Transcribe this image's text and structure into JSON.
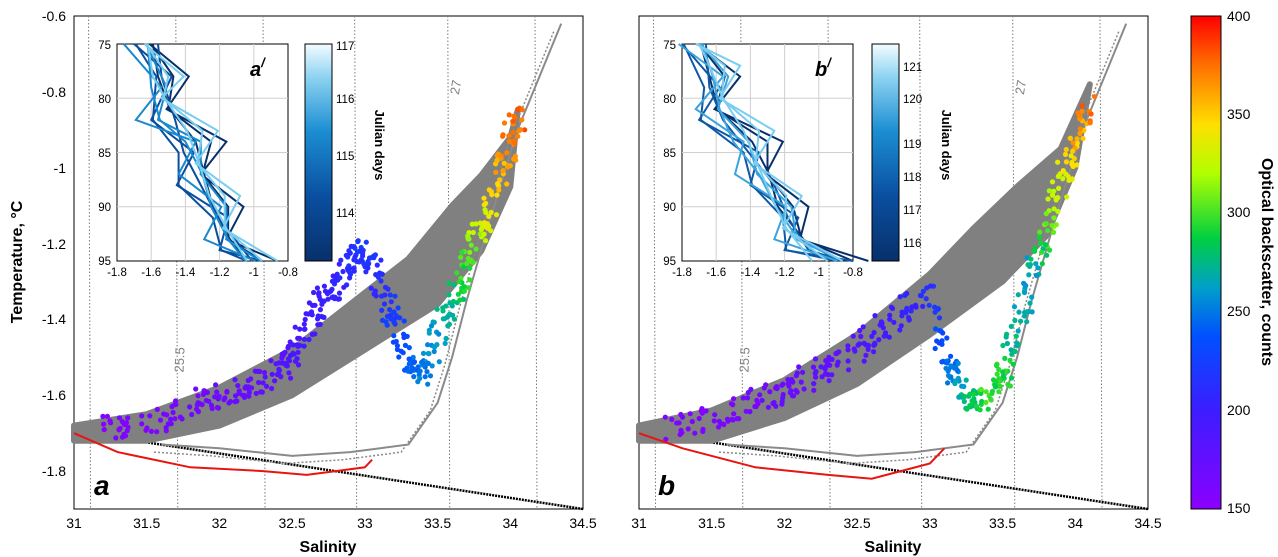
{
  "colors": {
    "gray_points": "#808080",
    "freezing_line": "#000000",
    "red_profile": "#e8140f",
    "isopycnal": "#7a7a7a",
    "grid": "#cfcfcf"
  },
  "chart_data": [
    {
      "id": "a",
      "type": "scatter",
      "panel_letter": "a",
      "xlabel": "Salinity",
      "ylabel": "Temperature, °C",
      "xlim": [
        31,
        34.5
      ],
      "ylim": [
        -1.9,
        -0.6
      ],
      "xticks": [
        "31",
        "31.5",
        "32",
        "32.5",
        "33",
        "33.5",
        "34",
        "34.5"
      ],
      "yticks": [
        "-0.6",
        "-0.8",
        "-1",
        "-1.2",
        "-1.4",
        "-1.6",
        "-1.8"
      ],
      "isopycnal_labels": [
        "25.5",
        "27"
      ],
      "series": [
        {
          "kind": "background",
          "color": "#808080",
          "upper_edge": [
            [
              31.0,
              -1.68
            ],
            [
              31.5,
              -1.65
            ],
            [
              32.0,
              -1.58
            ],
            [
              32.5,
              -1.48
            ],
            [
              33.0,
              -1.33
            ],
            [
              33.3,
              -1.24
            ],
            [
              33.6,
              -1.1
            ],
            [
              33.8,
              -1.02
            ],
            [
              34.0,
              -0.92
            ],
            [
              34.05,
              -0.85
            ]
          ],
          "lower_edge": [
            [
              31.0,
              -1.72
            ],
            [
              31.5,
              -1.72
            ],
            [
              32.0,
              -1.68
            ],
            [
              32.5,
              -1.6
            ],
            [
              33.0,
              -1.48
            ],
            [
              33.5,
              -1.36
            ],
            [
              33.8,
              -1.22
            ],
            [
              34.0,
              -1.05
            ],
            [
              34.05,
              -0.85
            ]
          ]
        },
        {
          "kind": "colored",
          "values": [
            [
              31.2,
              -1.69,
              155
            ],
            [
              31.5,
              -1.67,
              160
            ],
            [
              31.8,
              -1.63,
              165
            ],
            [
              32.0,
              -1.6,
              170
            ],
            [
              32.2,
              -1.58,
              175
            ],
            [
              32.4,
              -1.53,
              180
            ],
            [
              32.5,
              -1.5,
              190
            ],
            [
              32.6,
              -1.42,
              195
            ],
            [
              32.7,
              -1.35,
              200
            ],
            [
              32.8,
              -1.3,
              205
            ],
            [
              32.9,
              -1.25,
              210
            ],
            [
              33.0,
              -1.22,
              220
            ],
            [
              33.1,
              -1.3,
              210
            ],
            [
              33.2,
              -1.4,
              225
            ],
            [
              33.3,
              -1.5,
              240
            ],
            [
              33.4,
              -1.55,
              250
            ],
            [
              33.5,
              -1.45,
              260
            ],
            [
              33.6,
              -1.35,
              280
            ],
            [
              33.7,
              -1.25,
              300
            ],
            [
              33.8,
              -1.15,
              330
            ],
            [
              33.9,
              -1.05,
              350
            ],
            [
              34.0,
              -0.95,
              370
            ],
            [
              34.05,
              -0.85,
              380
            ]
          ]
        },
        {
          "kind": "profile",
          "color": "#e8140f",
          "points": [
            [
              31.0,
              -1.7
            ],
            [
              31.3,
              -1.75
            ],
            [
              31.8,
              -1.79
            ],
            [
              32.3,
              -1.8
            ],
            [
              32.6,
              -1.81
            ],
            [
              32.8,
              -1.8
            ],
            [
              33.0,
              -1.79
            ],
            [
              33.05,
              -1.77
            ]
          ]
        }
      ],
      "colorbar": {
        "title": "Optical backscatter, counts",
        "ticks": [
          "150",
          "200",
          "250",
          "300",
          "350",
          "400"
        ],
        "range": [
          150,
          400
        ]
      },
      "inset": {
        "label": "a",
        "label_superscript": "/",
        "xticks": [
          "-1.8",
          "-1.6",
          "-1.4",
          "-1.2",
          "-1",
          "-0.8"
        ],
        "yticks": [
          "75",
          "80",
          "85",
          "90",
          "95"
        ],
        "xlim": [
          -1.8,
          -0.8
        ],
        "ylim": [
          75,
          95
        ],
        "colorbar_title": "Julian days",
        "colorbar_ticks": [
          "114",
          "115",
          "116",
          "117"
        ],
        "profiles": [
          {
            "day": 114,
            "points": [
              [
                -1.55,
                75
              ],
              [
                -1.52,
                78
              ],
              [
                -1.45,
                81
              ],
              [
                -1.3,
                84
              ],
              [
                -1.25,
                87
              ],
              [
                -1.2,
                90
              ],
              [
                -1.1,
                93
              ],
              [
                -1.0,
                95
              ]
            ]
          },
          {
            "day": 115,
            "points": [
              [
                -1.6,
                75
              ],
              [
                -1.58,
                78
              ],
              [
                -1.5,
                82
              ],
              [
                -1.45,
                85
              ],
              [
                -1.35,
                88
              ],
              [
                -1.25,
                91
              ],
              [
                -1.1,
                94
              ],
              [
                -1.05,
                95
              ]
            ]
          },
          {
            "day": 116,
            "points": [
              [
                -1.62,
                75
              ],
              [
                -1.6,
                79
              ],
              [
                -1.55,
                82
              ],
              [
                -1.4,
                84
              ],
              [
                -1.3,
                87
              ],
              [
                -1.25,
                90
              ],
              [
                -1.15,
                93
              ],
              [
                -1.05,
                95
              ]
            ]
          },
          {
            "day": 117,
            "points": [
              [
                -1.58,
                75
              ],
              [
                -1.55,
                78
              ],
              [
                -1.48,
                80
              ],
              [
                -1.35,
                83
              ],
              [
                -1.28,
                86
              ],
              [
                -1.22,
                89
              ],
              [
                -1.12,
                92
              ],
              [
                -1.0,
                95
              ]
            ]
          }
        ]
      }
    },
    {
      "id": "b",
      "type": "scatter",
      "panel_letter": "b",
      "xlabel": "Salinity",
      "xlim": [
        31,
        34.5
      ],
      "ylim": [
        -1.9,
        -0.6
      ],
      "xticks": [
        "31",
        "31.5",
        "32",
        "32.5",
        "33",
        "33.5",
        "34",
        "34.5"
      ],
      "isopycnal_labels": [
        "25.5",
        "27"
      ],
      "series": [
        {
          "kind": "background",
          "color": "#808080",
          "upper_edge": [
            [
              31.0,
              -1.68
            ],
            [
              31.5,
              -1.64
            ],
            [
              32.0,
              -1.56
            ],
            [
              32.5,
              -1.44
            ],
            [
              33.0,
              -1.28
            ],
            [
              33.3,
              -1.16
            ],
            [
              33.6,
              -1.05
            ],
            [
              33.9,
              -0.95
            ],
            [
              34.1,
              -0.78
            ]
          ],
          "lower_edge": [
            [
              31.0,
              -1.72
            ],
            [
              31.5,
              -1.72
            ],
            [
              32.0,
              -1.66
            ],
            [
              32.5,
              -1.57
            ],
            [
              33.0,
              -1.44
            ],
            [
              33.5,
              -1.3
            ],
            [
              33.8,
              -1.18
            ],
            [
              34.0,
              -1.0
            ],
            [
              34.1,
              -0.78
            ]
          ]
        },
        {
          "kind": "colored",
          "values": [
            [
              31.2,
              -1.69,
              155
            ],
            [
              31.5,
              -1.66,
              160
            ],
            [
              31.8,
              -1.62,
              165
            ],
            [
              32.0,
              -1.58,
              170
            ],
            [
              32.2,
              -1.55,
              175
            ],
            [
              32.4,
              -1.5,
              180
            ],
            [
              32.6,
              -1.45,
              190
            ],
            [
              32.8,
              -1.38,
              200
            ],
            [
              33.0,
              -1.33,
              215
            ],
            [
              33.1,
              -1.5,
              240
            ],
            [
              33.2,
              -1.58,
              260
            ],
            [
              33.3,
              -1.62,
              280
            ],
            [
              33.4,
              -1.6,
              300
            ],
            [
              33.5,
              -1.55,
              290
            ],
            [
              33.6,
              -1.42,
              270
            ],
            [
              33.7,
              -1.28,
              260
            ],
            [
              33.8,
              -1.18,
              300
            ],
            [
              33.9,
              -1.05,
              330
            ],
            [
              34.0,
              -0.95,
              350
            ],
            [
              34.1,
              -0.82,
              380
            ]
          ]
        },
        {
          "kind": "profile",
          "color": "#e8140f",
          "points": [
            [
              31.0,
              -1.7
            ],
            [
              31.3,
              -1.74
            ],
            [
              31.8,
              -1.79
            ],
            [
              32.3,
              -1.81
            ],
            [
              32.6,
              -1.82
            ],
            [
              32.8,
              -1.8
            ],
            [
              33.0,
              -1.78
            ],
            [
              33.1,
              -1.74
            ]
          ]
        }
      ],
      "inset": {
        "label": "b",
        "label_superscript": "/",
        "xticks": [
          "-1.8",
          "-1.6",
          "-1.4",
          "-1.2",
          "-1",
          "-0.8"
        ],
        "yticks": [
          "75",
          "80",
          "85",
          "90",
          "95"
        ],
        "xlim": [
          -1.8,
          -0.8
        ],
        "ylim": [
          75,
          95
        ],
        "colorbar_title": "Julian days",
        "colorbar_ticks": [
          "116",
          "117",
          "118",
          "119",
          "120",
          "121"
        ],
        "profiles": [
          {
            "day": 116,
            "points": [
              [
                -1.65,
                75
              ],
              [
                -1.6,
                78
              ],
              [
                -1.55,
                81
              ],
              [
                -1.35,
                84
              ],
              [
                -1.25,
                87
              ],
              [
                -1.2,
                90
              ],
              [
                -1.05,
                93
              ],
              [
                -0.85,
                95
              ]
            ]
          },
          {
            "day": 118,
            "points": [
              [
                -1.7,
                75
              ],
              [
                -1.68,
                79
              ],
              [
                -1.6,
                82
              ],
              [
                -1.45,
                85
              ],
              [
                -1.3,
                88
              ],
              [
                -1.22,
                91
              ],
              [
                -1.1,
                94
              ],
              [
                -0.9,
                95
              ]
            ]
          },
          {
            "day": 120,
            "points": [
              [
                -1.68,
                75
              ],
              [
                -1.62,
                78
              ],
              [
                -1.58,
                81
              ],
              [
                -1.5,
                84
              ],
              [
                -1.35,
                87
              ],
              [
                -1.25,
                90
              ],
              [
                -1.12,
                93
              ],
              [
                -0.95,
                95
              ]
            ]
          },
          {
            "day": 121,
            "points": [
              [
                -1.66,
                75
              ],
              [
                -1.6,
                77
              ],
              [
                -1.52,
                80
              ],
              [
                -1.4,
                83
              ],
              [
                -1.32,
                86
              ],
              [
                -1.24,
                89
              ],
              [
                -1.15,
                92
              ],
              [
                -1.0,
                95
              ]
            ]
          }
        ]
      }
    }
  ]
}
